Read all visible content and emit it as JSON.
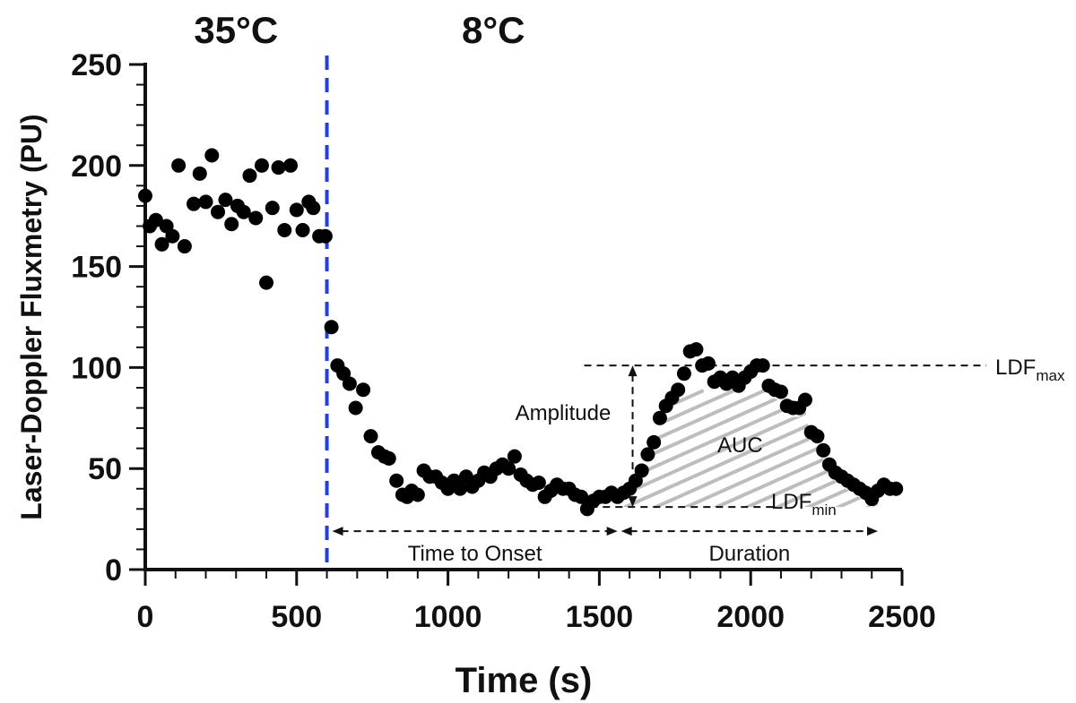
{
  "chart_data": {
    "type": "scatter",
    "title": "",
    "xlabel": "Time (s)",
    "ylabel": "Laser-Doppler Fluxmetry (PU)",
    "xlim": [
      0,
      2500
    ],
    "ylim": [
      0,
      250
    ],
    "xticks": [
      0,
      500,
      1000,
      1500,
      2000,
      2500
    ],
    "yticks": [
      0,
      50,
      100,
      150,
      200,
      250
    ],
    "condition_labels": [
      {
        "text": "35°C",
        "x_center": 300
      },
      {
        "text": "8°C",
        "x_center": 1150
      }
    ],
    "cooling_onset_time": 600,
    "annotations": {
      "amplitude": "Amplitude",
      "auc": "AUC",
      "time_to_onset": "Time to Onset",
      "duration": "Duration",
      "ldf_max": {
        "base": "LDF",
        "sub": "max",
        "value": 101
      },
      "ldf_min": {
        "base": "LDF",
        "sub": "min",
        "value": 31
      },
      "onset_time": 1560,
      "end_time": 2420
    },
    "series": [
      {
        "name": "LDF",
        "points": [
          [
            0,
            185
          ],
          [
            15,
            170
          ],
          [
            35,
            173
          ],
          [
            55,
            161
          ],
          [
            70,
            170
          ],
          [
            90,
            165
          ],
          [
            110,
            200
          ],
          [
            130,
            160
          ],
          [
            160,
            181
          ],
          [
            180,
            196
          ],
          [
            200,
            182
          ],
          [
            220,
            205
          ],
          [
            240,
            177
          ],
          [
            265,
            183
          ],
          [
            285,
            171
          ],
          [
            305,
            180
          ],
          [
            325,
            177
          ],
          [
            345,
            195
          ],
          [
            365,
            174
          ],
          [
            385,
            200
          ],
          [
            400,
            142
          ],
          [
            420,
            179
          ],
          [
            440,
            199
          ],
          [
            460,
            168
          ],
          [
            480,
            200
          ],
          [
            500,
            178
          ],
          [
            520,
            168
          ],
          [
            540,
            182
          ],
          [
            555,
            179
          ],
          [
            575,
            165
          ],
          [
            595,
            165
          ],
          [
            615,
            120
          ],
          [
            635,
            101
          ],
          [
            655,
            97
          ],
          [
            675,
            92
          ],
          [
            695,
            80
          ],
          [
            720,
            89
          ],
          [
            745,
            66
          ],
          [
            770,
            58
          ],
          [
            790,
            56
          ],
          [
            805,
            55
          ],
          [
            830,
            44
          ],
          [
            850,
            37
          ],
          [
            865,
            36
          ],
          [
            880,
            39
          ],
          [
            900,
            37
          ],
          [
            920,
            49
          ],
          [
            940,
            46
          ],
          [
            960,
            46
          ],
          [
            980,
            43
          ],
          [
            1000,
            40
          ],
          [
            1020,
            44
          ],
          [
            1040,
            40
          ],
          [
            1060,
            46
          ],
          [
            1080,
            41
          ],
          [
            1100,
            44
          ],
          [
            1120,
            48
          ],
          [
            1140,
            46
          ],
          [
            1160,
            50
          ],
          [
            1180,
            52
          ],
          [
            1200,
            50
          ],
          [
            1220,
            56
          ],
          [
            1240,
            47
          ],
          [
            1260,
            44
          ],
          [
            1280,
            42
          ],
          [
            1300,
            43
          ],
          [
            1320,
            36
          ],
          [
            1340,
            39
          ],
          [
            1360,
            42
          ],
          [
            1380,
            40
          ],
          [
            1400,
            40
          ],
          [
            1420,
            37
          ],
          [
            1440,
            36
          ],
          [
            1460,
            30
          ],
          [
            1480,
            34
          ],
          [
            1500,
            36
          ],
          [
            1520,
            36
          ],
          [
            1540,
            38
          ],
          [
            1560,
            36
          ],
          [
            1580,
            38
          ],
          [
            1600,
            40
          ],
          [
            1620,
            44
          ],
          [
            1640,
            49
          ],
          [
            1660,
            57
          ],
          [
            1680,
            63
          ],
          [
            1700,
            75
          ],
          [
            1720,
            81
          ],
          [
            1740,
            85
          ],
          [
            1760,
            89
          ],
          [
            1780,
            97
          ],
          [
            1800,
            108
          ],
          [
            1820,
            109
          ],
          [
            1840,
            101
          ],
          [
            1860,
            102
          ],
          [
            1880,
            93
          ],
          [
            1900,
            95
          ],
          [
            1920,
            92
          ],
          [
            1940,
            95
          ],
          [
            1960,
            91
          ],
          [
            1980,
            95
          ],
          [
            2000,
            98
          ],
          [
            2020,
            101
          ],
          [
            2040,
            101
          ],
          [
            2060,
            91
          ],
          [
            2080,
            89
          ],
          [
            2100,
            88
          ],
          [
            2120,
            81
          ],
          [
            2140,
            80
          ],
          [
            2160,
            80
          ],
          [
            2180,
            84
          ],
          [
            2200,
            68
          ],
          [
            2220,
            66
          ],
          [
            2240,
            59
          ],
          [
            2260,
            52
          ],
          [
            2280,
            48
          ],
          [
            2300,
            46
          ],
          [
            2320,
            44
          ],
          [
            2340,
            42
          ],
          [
            2360,
            40
          ],
          [
            2380,
            38
          ],
          [
            2400,
            35
          ],
          [
            2420,
            39
          ],
          [
            2440,
            42
          ],
          [
            2460,
            40
          ],
          [
            2480,
            40
          ]
        ]
      }
    ]
  }
}
